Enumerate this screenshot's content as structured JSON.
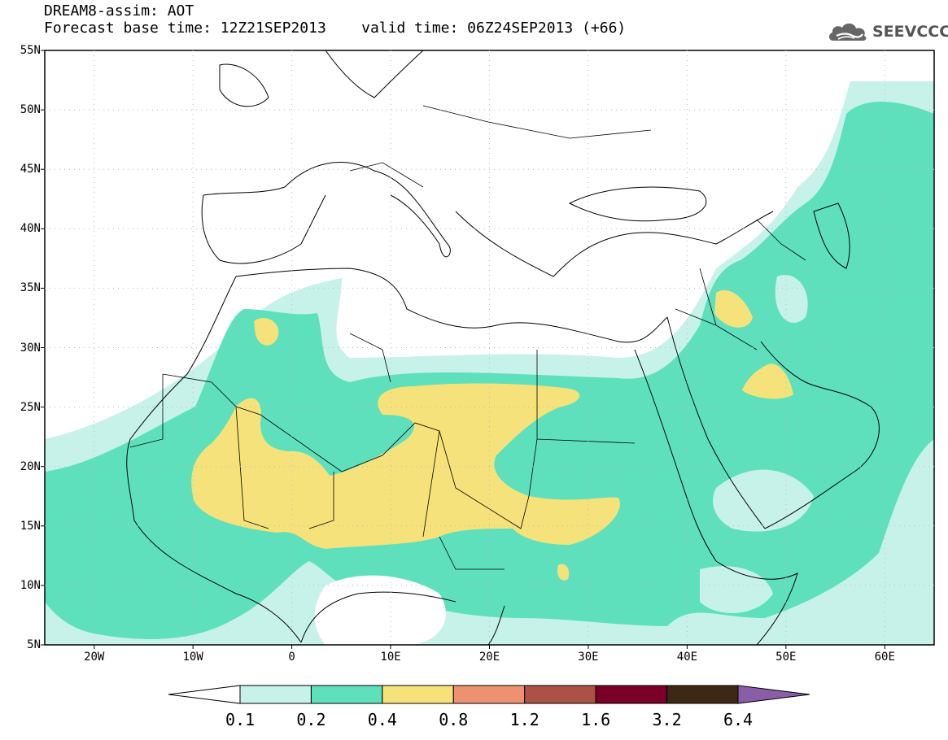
{
  "title": {
    "line1": "DREAM8-assim: AOT",
    "line2": "Forecast base time: 12Z21SEP2013    valid time: 06Z24SEP2013 (+66)"
  },
  "logo": {
    "text": "SEEVCCC",
    "icon": "cloud-icon"
  },
  "map": {
    "lon_range": [
      -25,
      65
    ],
    "lat_range": [
      5,
      55
    ],
    "lat_labels": [
      "55N",
      "50N",
      "45N",
      "40N",
      "35N",
      "30N",
      "25N",
      "20N",
      "15N",
      "10N",
      "5N"
    ],
    "lon_labels": [
      "20W",
      "10W",
      "0",
      "10E",
      "20E",
      "30E",
      "40E",
      "50E",
      "60E"
    ]
  },
  "colorbar": {
    "labels": [
      "0.1",
      "0.2",
      "0.4",
      "0.8",
      "1.2",
      "1.6",
      "3.2",
      "6.4"
    ],
    "colors": [
      "#ffffff",
      "#c6f2ea",
      "#5fe0bd",
      "#f5e27a",
      "#ec9270",
      "#ac5145",
      "#7a0028",
      "#3c2815",
      "#8a5ea6"
    ]
  },
  "colors": {
    "aot_01_02": "#c6f2ea",
    "aot_02_04": "#5fe0bd",
    "aot_04_08": "#f5e27a",
    "frame": "#000000",
    "grid": "#bbbbbb"
  }
}
